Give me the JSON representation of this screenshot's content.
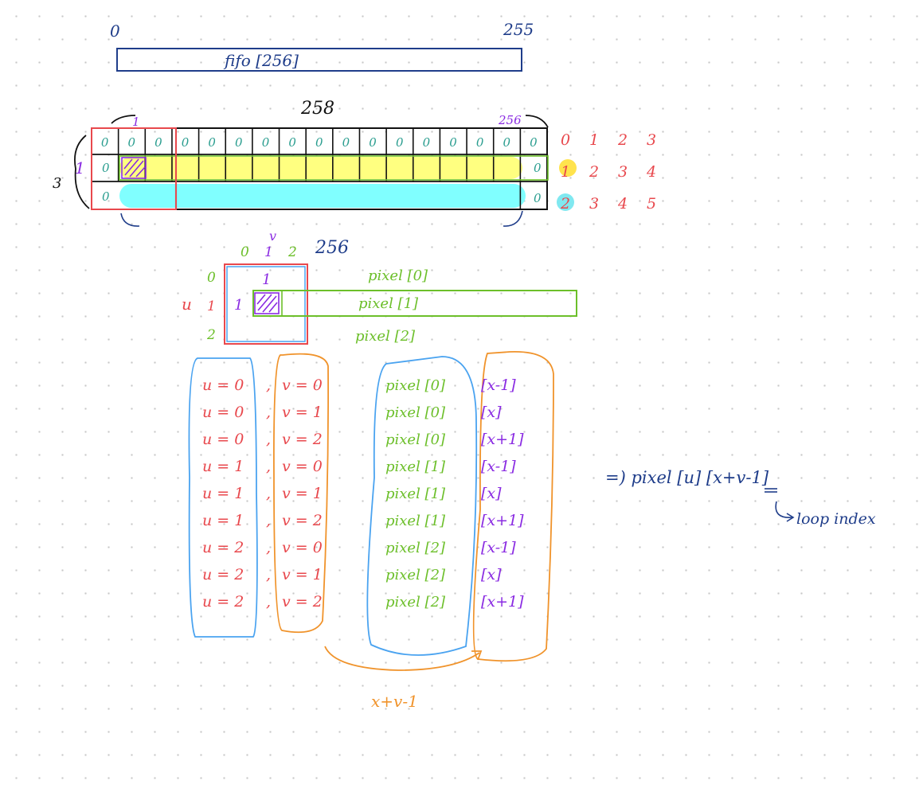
{
  "fifo": {
    "start_index": "0",
    "end_index": "255",
    "label": "fifo [256]"
  },
  "line_buffer": {
    "width_label": "258",
    "first_index": "1",
    "last_index": "256",
    "rows_label": "3",
    "row_label": "1",
    "top_row_cell": "0",
    "side_zero": "0",
    "sequence_rows": [
      [
        "0",
        "1",
        "2",
        "3"
      ],
      [
        "1",
        "2",
        "3",
        "4"
      ],
      [
        "2",
        "3",
        "4",
        "5"
      ]
    ]
  },
  "kernel": {
    "col_indices": [
      "0",
      "1",
      "2"
    ],
    "col_v_label": "v",
    "col_end": "256",
    "row_indices": [
      "0",
      "1",
      "2"
    ],
    "row_u_label": "u",
    "center_top": "1",
    "center_left": "1",
    "pixel_rows": [
      "pixel [0]",
      "pixel [1]",
      "pixel [2]"
    ]
  },
  "index_pairs": [
    {
      "u": "u = 0",
      "v": "v = 0",
      "pixel": "pixel [0]",
      "col": "[x-1]"
    },
    {
      "u": "u = 0",
      "v": "v = 1",
      "pixel": "pixel [0]",
      "col": "[x]"
    },
    {
      "u": "u = 0",
      "v": "v = 2",
      "pixel": "pixel [0]",
      "col": "[x+1]"
    },
    {
      "u": "u = 1",
      "v": "v = 0",
      "pixel": "pixel [1]",
      "col": "[x-1]"
    },
    {
      "u": "u = 1",
      "v": "v = 1",
      "pixel": "pixel [1]",
      "col": "[x]"
    },
    {
      "u": "u = 1",
      "v": "v = 2",
      "pixel": "pixel [1]",
      "col": "[x+1]"
    },
    {
      "u": "u = 2",
      "v": "v = 0",
      "pixel": "pixel [2]",
      "col": "[x-1]"
    },
    {
      "u": "u = 2",
      "v": "v = 1",
      "pixel": "pixel [2]",
      "col": "[x]"
    },
    {
      "u": "u = 2",
      "v": "v = 2",
      "pixel": "pixel [2]",
      "col": "[x+1]"
    }
  ],
  "formula": {
    "result": "=) pixel [u] [x+v-1]",
    "note": "loop index",
    "arrow_label": "x+v-1"
  },
  "colors": {
    "blue": "#1f3d8a",
    "red": "#e8484d",
    "green": "#6cbf2a",
    "purple": "#8a2be2",
    "teal": "#2a9d8f",
    "orange": "#f0932b",
    "yellow": "#ffff80",
    "cyan": "#80ffff",
    "light_blue": "#4aa3f0"
  }
}
